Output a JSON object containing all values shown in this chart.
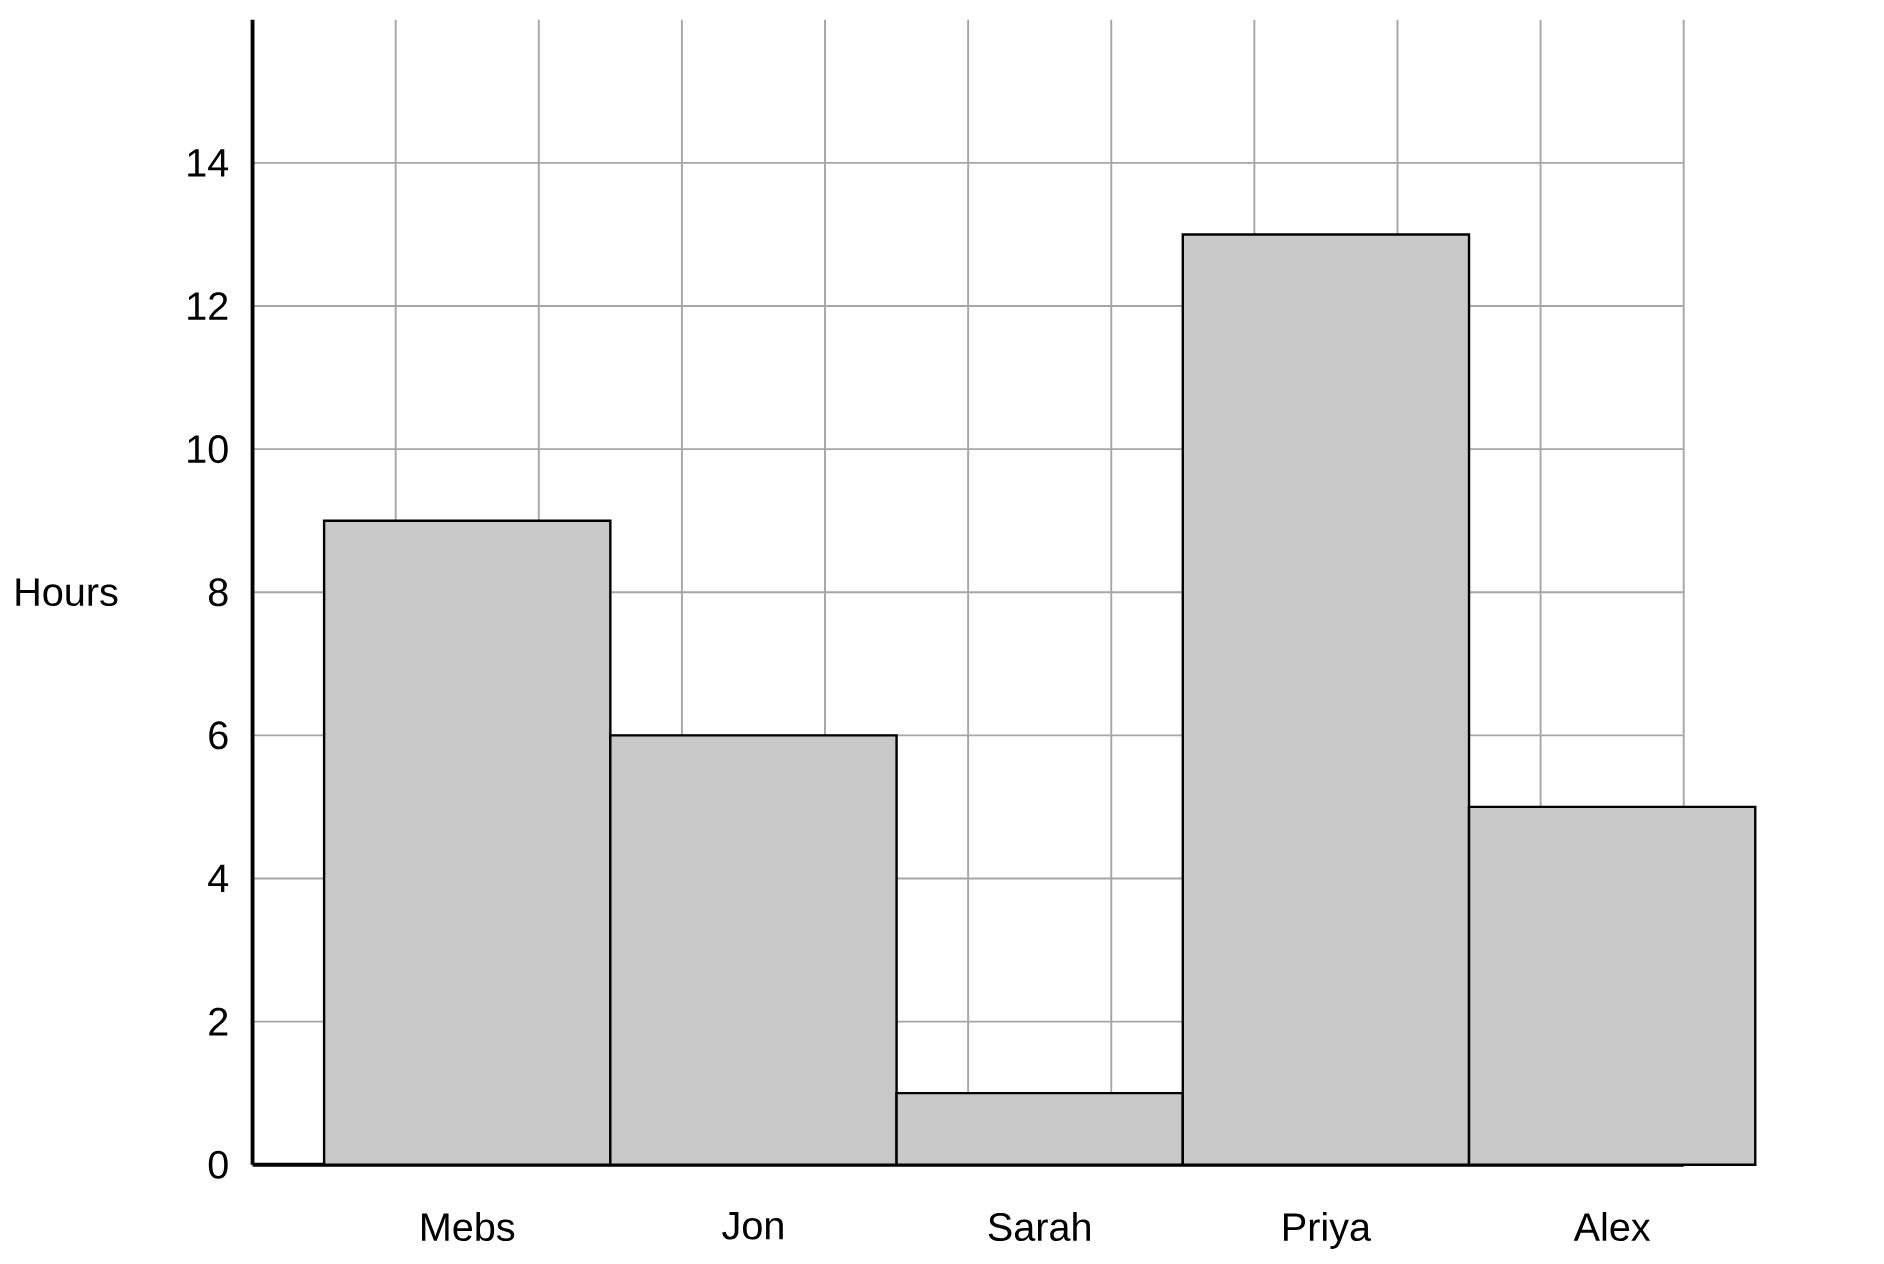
{
  "chart_data": {
    "type": "bar",
    "ylabel": "Hours",
    "categories": [
      "Mebs",
      "Jon",
      "Sarah",
      "Priya",
      "Alex"
    ],
    "values": [
      9,
      6,
      1,
      13,
      5
    ],
    "color": "#c8c8c8",
    "ylim": [
      0,
      16
    ],
    "yticks": [
      0,
      2,
      4,
      6,
      8,
      10,
      12,
      14
    ],
    "grid": true
  }
}
